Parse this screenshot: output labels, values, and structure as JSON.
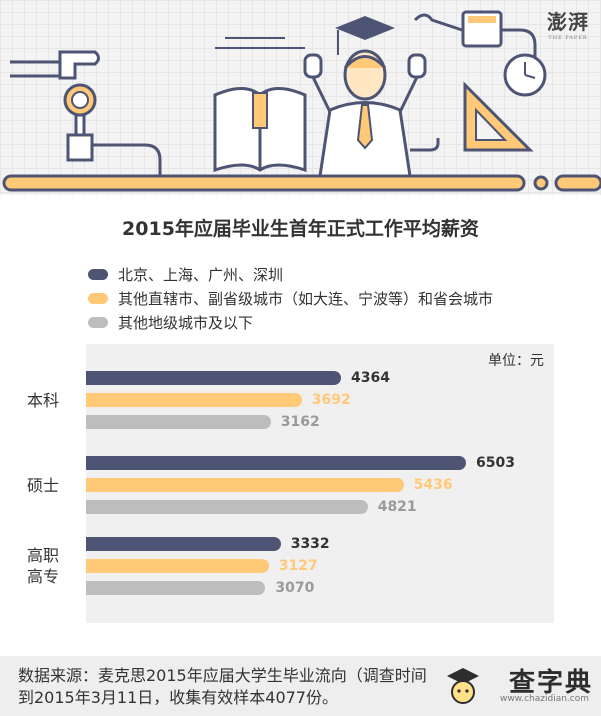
{
  "brand": {
    "logo_text": "澎湃",
    "logo_sub": "THE PAPER"
  },
  "chart_data": {
    "type": "bar",
    "orientation": "horizontal",
    "title": "2015年应届毕业生首年正式工作平均薪资",
    "unit": "单位：元",
    "categories": [
      "本科",
      "硕士",
      "高职高专"
    ],
    "series": [
      {
        "name": "北京、上海、广州、深圳",
        "color": "#4e5473",
        "values": [
          4364,
          6503,
          3332
        ]
      },
      {
        "name": "其他直辖市、副省级城市（如大连、宁波等）和省会城市",
        "color": "#ffc978",
        "values": [
          3692,
          5436,
          3127
        ]
      },
      {
        "name": "其他地级城市及以下",
        "color": "#bdbdbd",
        "values": [
          3162,
          4821,
          3070
        ]
      }
    ],
    "xlim": [
      0,
      7000
    ],
    "grid": false,
    "legend_position": "top"
  },
  "footer": {
    "source": "数据来源：麦克思2015年应届大学生毕业流向（调查时间 到2015年3月11日，收集有效样本4077份。"
  },
  "watermark": {
    "text": "查字典",
    "url": "www.chazidian.com"
  },
  "colors": {
    "background": "#ffffff",
    "plot_bg": "#f0f0f0",
    "footer_bg": "#eeeeee"
  }
}
